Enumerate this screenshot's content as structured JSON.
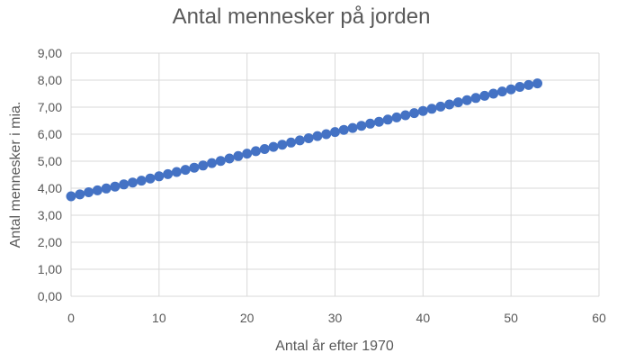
{
  "colors": {
    "series": "#4472c4",
    "grid": "#d9d9d9",
    "text": "#595959"
  },
  "chart_data": {
    "type": "scatter",
    "title": "Antal mennesker på jorden",
    "xlabel": "Antal år efter 1970",
    "ylabel": "Antal mennesker i mia.",
    "xlim": [
      0,
      60
    ],
    "ylim": [
      0,
      9
    ],
    "xticks": [
      0,
      10,
      20,
      30,
      40,
      50,
      60
    ],
    "xtick_labels": [
      "0",
      "10",
      "20",
      "30",
      "40",
      "50",
      "60"
    ],
    "yticks": [
      0,
      1,
      2,
      3,
      4,
      5,
      6,
      7,
      8,
      9
    ],
    "ytick_labels": [
      "0,00",
      "1,00",
      "2,00",
      "3,00",
      "4,00",
      "5,00",
      "6,00",
      "7,00",
      "8,00",
      "9,00"
    ],
    "grid": true,
    "legend": "none",
    "series": [
      {
        "x": [
          0,
          1,
          2,
          3,
          4,
          5,
          6,
          7,
          8,
          9,
          10,
          11,
          12,
          13,
          14,
          15,
          16,
          17,
          18,
          19,
          20,
          21,
          22,
          23,
          24,
          25,
          26,
          27,
          28,
          29,
          30,
          31,
          32,
          33,
          34,
          35,
          36,
          37,
          38,
          39,
          40,
          41,
          42,
          43,
          44,
          45,
          46,
          47,
          48,
          49,
          50,
          51,
          52,
          53
        ],
        "y": [
          3.7,
          3.77,
          3.85,
          3.92,
          3.99,
          4.06,
          4.14,
          4.21,
          4.28,
          4.36,
          4.44,
          4.52,
          4.6,
          4.68,
          4.76,
          4.84,
          4.93,
          5.01,
          5.1,
          5.19,
          5.28,
          5.37,
          5.45,
          5.53,
          5.61,
          5.69,
          5.77,
          5.85,
          5.93,
          6.0,
          6.08,
          6.16,
          6.23,
          6.31,
          6.39,
          6.46,
          6.54,
          6.62,
          6.7,
          6.78,
          6.86,
          6.94,
          7.02,
          7.1,
          7.18,
          7.26,
          7.34,
          7.42,
          7.5,
          7.58,
          7.66,
          7.75,
          7.82,
          7.88
        ]
      }
    ]
  }
}
